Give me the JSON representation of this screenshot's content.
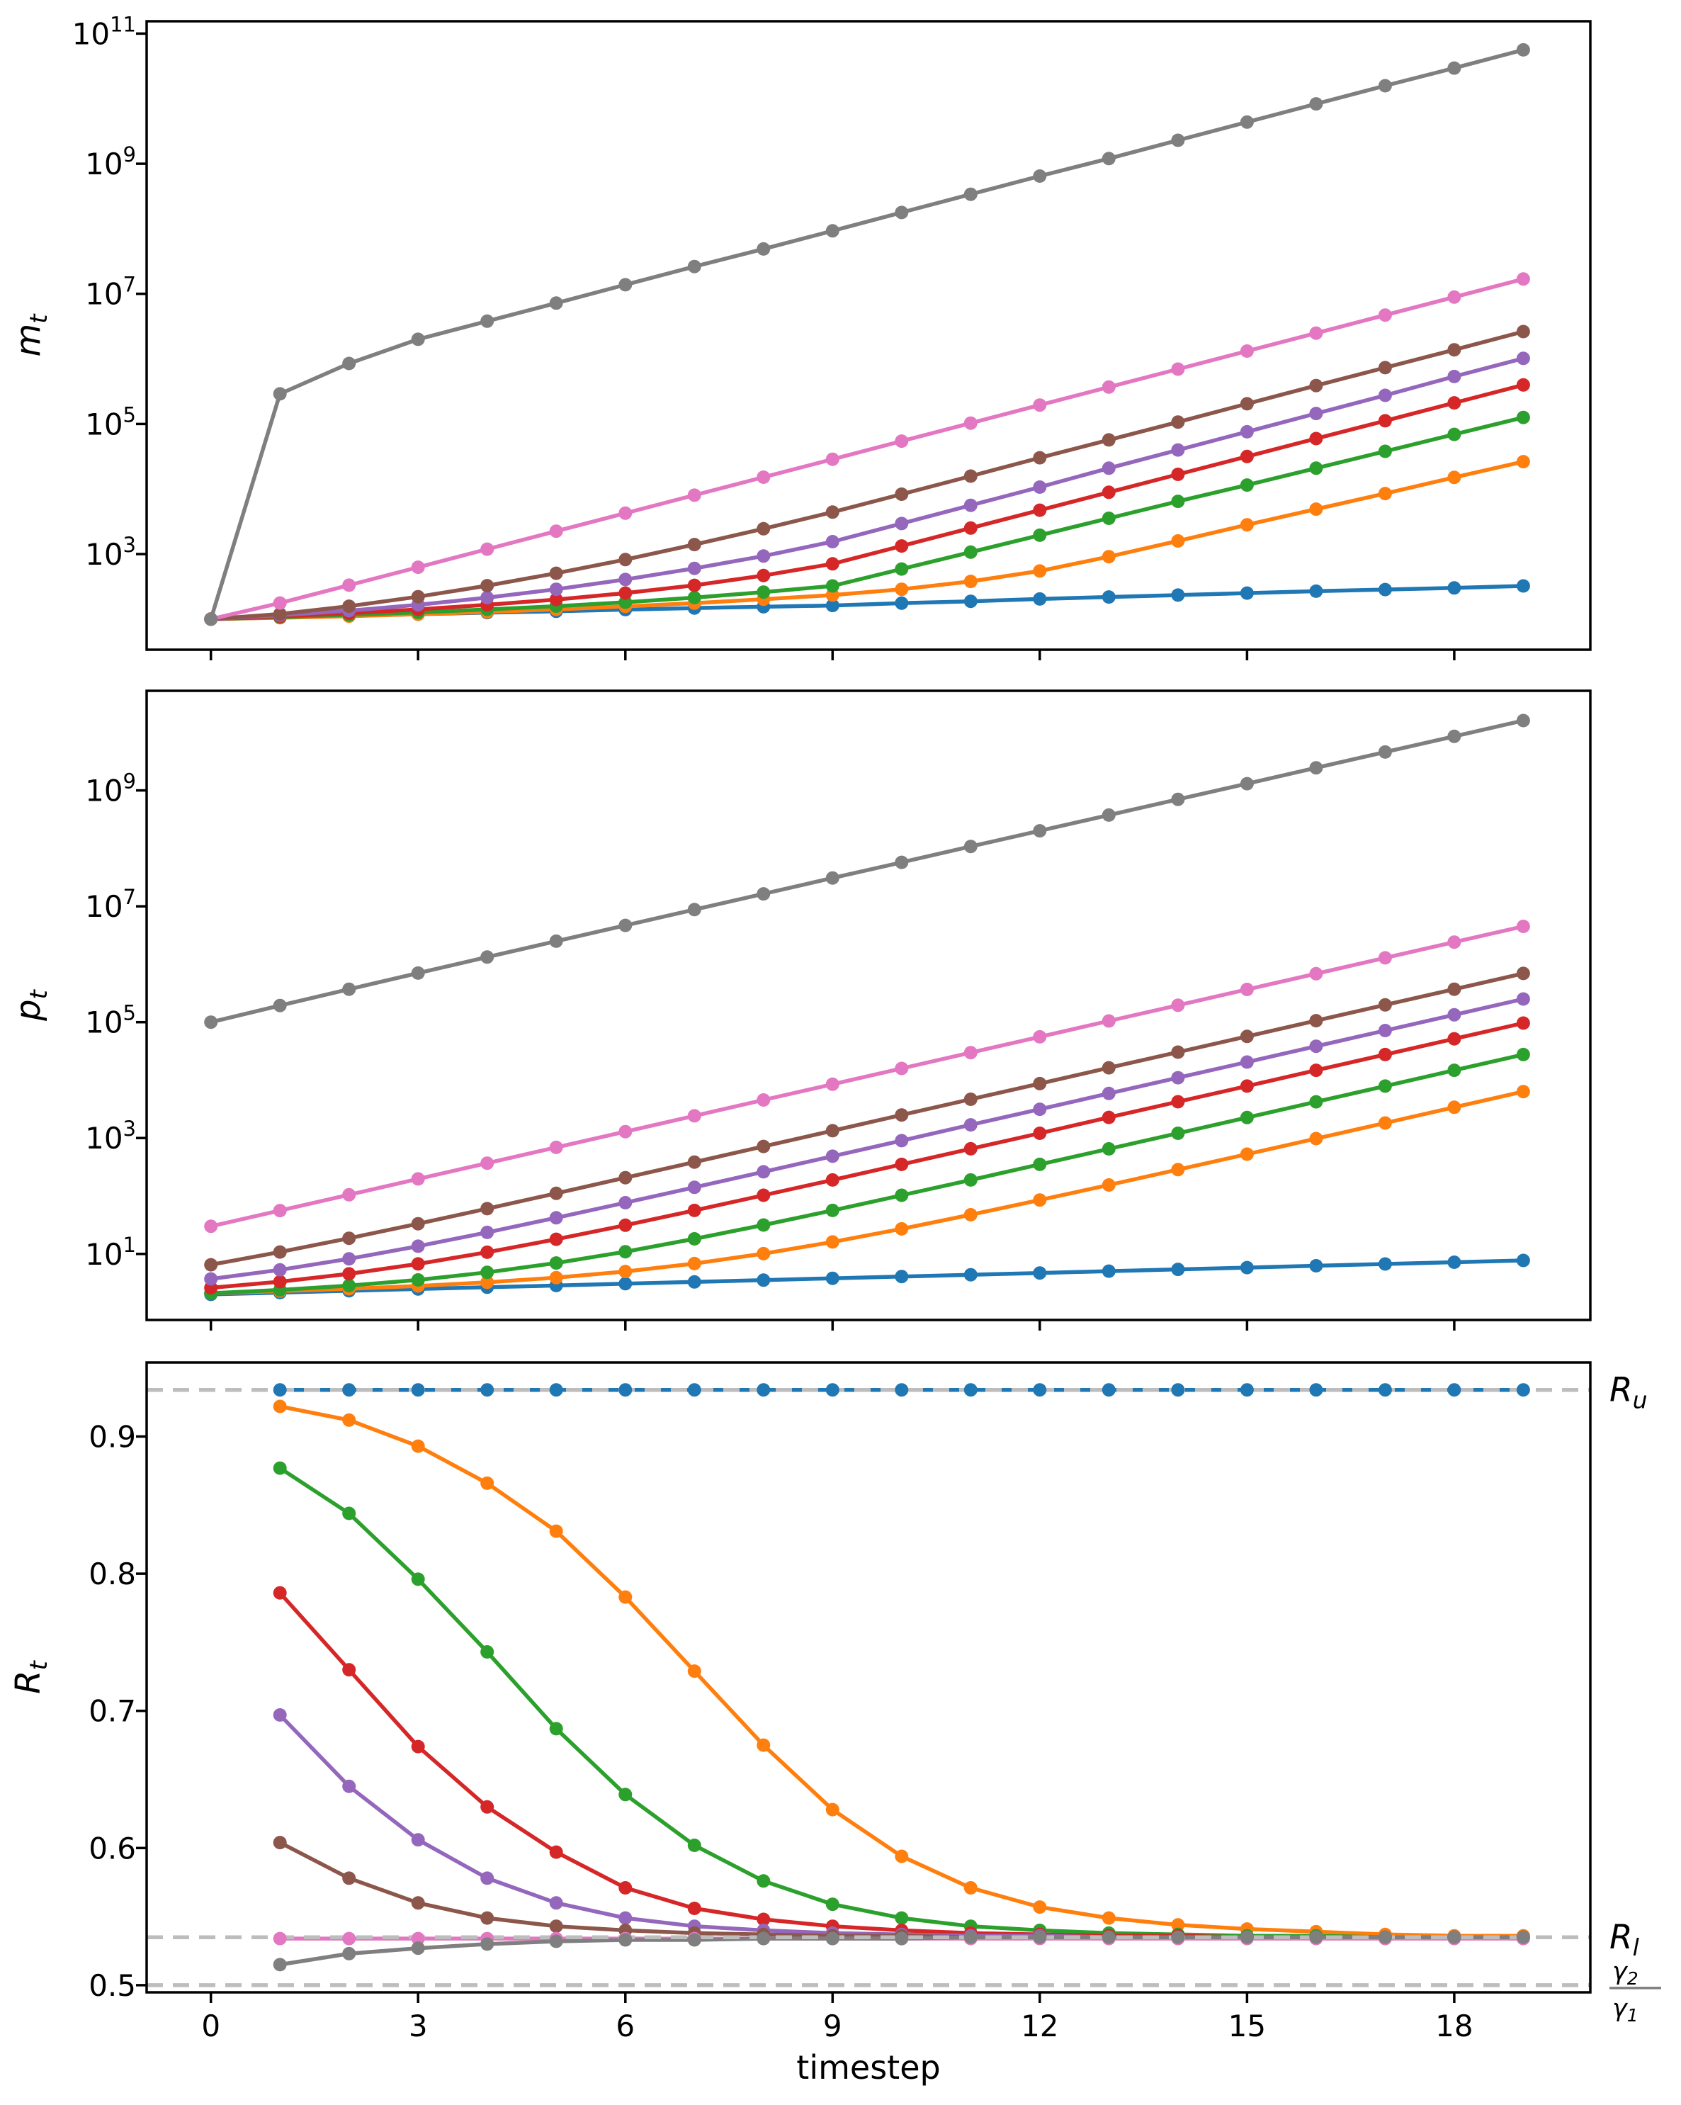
{
  "figure": {
    "background": "#ffffff"
  },
  "colors": {
    "blue": "#1f77b4",
    "orange": "#ff7f0e",
    "green": "#2ca02c",
    "red": "#d62728",
    "purple": "#9467bd",
    "brown": "#8c564b",
    "pink": "#e377c2",
    "gray": "#7f7f7f",
    "dashed_line": "#bdbdbd",
    "annotation_text": "#7f7f7f",
    "axis": "#000000"
  },
  "chart_data": [
    {
      "id": "chart-mt",
      "type": "line",
      "yscale": "log",
      "ylabel_base": "m",
      "ylabel_sub": "t",
      "ylim_log": [
        1.53,
        11.19
      ],
      "yticks_exponents": [
        3,
        5,
        7,
        9,
        11
      ],
      "xticks": [
        0,
        3,
        6,
        9,
        12,
        15,
        18
      ],
      "show_xtick_labels": false,
      "xlabel": "",
      "x": [
        0,
        1,
        2,
        3,
        4,
        5,
        6,
        7,
        8,
        9,
        10,
        11,
        12,
        13,
        14,
        15,
        16,
        17,
        18,
        19
      ],
      "series": [
        {
          "name": "blue",
          "color": "blue",
          "values": [
            100,
            106,
            112,
            119,
            126,
            132,
            140,
            148,
            155,
            162,
            176,
            188,
            204,
            219,
            234,
            251,
            269,
            285,
            302,
            324
          ]
        },
        {
          "name": "orange",
          "color": "orange",
          "values": [
            100,
            105,
            111,
            119,
            129,
            141,
            157,
            176,
            202,
            234,
            288,
            380,
            550,
            912,
            1590,
            2820,
            4900,
            8510,
            15100,
            26300
          ]
        },
        {
          "name": "green",
          "color": "green",
          "values": [
            100,
            107,
            116,
            127,
            141,
            158,
            182,
            214,
            260,
            324,
            589,
            1070,
            1950,
            3550,
            6460,
            11500,
            20900,
            38000,
            69200,
            126000
          ]
        },
        {
          "name": "red",
          "color": "red",
          "values": [
            100,
            110,
            123,
            141,
            166,
            200,
            251,
            331,
            468,
            708,
            1330,
            2510,
            4730,
            8910,
            16800,
            31600,
            59600,
            112000,
            211000,
            398000
          ]
        },
        {
          "name": "purple",
          "color": "purple",
          "values": [
            100,
            115,
            135,
            166,
            214,
            288,
            407,
            603,
            933,
            1550,
            2950,
            5620,
            10700,
            20900,
            39800,
            75900,
            145000,
            275000,
            537000,
            1020000
          ]
        },
        {
          "name": "brown",
          "color": "brown",
          "values": [
            100,
            120,
            158,
            221,
            327,
            507,
            822,
            1400,
            2450,
            4420,
            8320,
            15800,
            30200,
            56900,
            107000,
            204000,
            389000,
            733000,
            1380000,
            2630000
          ]
        },
        {
          "name": "pink",
          "color": "pink",
          "values": [
            100,
            177,
            333,
            628,
            1190,
            2250,
            4250,
            8030,
            15200,
            28700,
            54500,
            103000,
            195000,
            369000,
            697000,
            1320000,
            2490000,
            4720000,
            8920000,
            16900000
          ]
        },
        {
          "name": "gray",
          "color": "gray",
          "values": [
            100,
            290000,
            850000,
            2000000,
            3800000,
            7200000,
            13800000,
            26300000,
            49000000,
            93000000,
            178000000,
            339000000,
            646000000,
            1200000000,
            2290000000,
            4370000000,
            8320000000,
            15800000000,
            29500000000,
            56200000000
          ]
        }
      ]
    },
    {
      "id": "chart-pt",
      "type": "line",
      "yscale": "log",
      "ylabel_base": "p",
      "ylabel_sub": "t",
      "ylim_log": [
        -0.14,
        10.72
      ],
      "yticks_exponents": [
        1,
        3,
        5,
        7,
        9
      ],
      "xticks": [
        0,
        3,
        6,
        9,
        12,
        15,
        18
      ],
      "show_xtick_labels": false,
      "xlabel": "",
      "x": [
        0,
        1,
        2,
        3,
        4,
        5,
        6,
        7,
        8,
        9,
        10,
        11,
        12,
        13,
        14,
        15,
        16,
        17,
        18,
        19
      ],
      "series": [
        {
          "name": "blue",
          "color": "blue",
          "values": [
            2.0,
            2.15,
            2.31,
            2.48,
            2.66,
            2.85,
            3.06,
            3.29,
            3.53,
            3.79,
            4.07,
            4.37,
            4.69,
            5.04,
            5.41,
            5.81,
            6.24,
            6.7,
            7.19,
            7.72
          ]
        },
        {
          "name": "orange",
          "color": "orange",
          "values": [
            2.1,
            2.28,
            2.5,
            2.8,
            3.23,
            3.89,
            4.97,
            6.81,
            10.1,
            16.1,
            27.1,
            47.4,
            85.1,
            155,
            285,
            527,
            978,
            1820,
            3400,
            6340
          ]
        },
        {
          "name": "green",
          "color": "green",
          "values": [
            2.1,
            2.39,
            2.84,
            3.56,
            4.8,
            6.98,
            10.9,
            18.2,
            31.5,
            56.4,
            103,
            189,
            351,
            651,
            1210,
            2260,
            4220,
            7890,
            14800,
            27600
          ]
        },
        {
          "name": "red",
          "color": "red",
          "values": [
            2.6,
            3.31,
            4.53,
            6.72,
            10.7,
            17.9,
            31.3,
            56.3,
            103,
            189,
            351,
            652,
            1210,
            2270,
            4230,
            7900,
            14800,
            27600,
            51600,
            96400
          ]
        },
        {
          "name": "purple",
          "color": "purple",
          "values": [
            3.7,
            5.31,
            8.23,
            13.6,
            23.5,
            42.0,
            76.5,
            141,
            261,
            485,
            903,
            1690,
            3140,
            5880,
            11000,
            20500,
            38400,
            71800,
            134000,
            251000
          ]
        },
        {
          "name": "brown",
          "color": "brown",
          "values": [
            6.5,
            10.8,
            18.6,
            33.2,
            60.5,
            111,
            207,
            384,
            716,
            1340,
            2500,
            4670,
            8710,
            16300,
            30400,
            56800,
            106000,
            199000,
            371000,
            694000
          ]
        },
        {
          "name": "pink",
          "color": "pink",
          "values": [
            30,
            56,
            105,
            197,
            369,
            691,
            1290,
            2420,
            4540,
            8500,
            15900,
            29800,
            55800,
            105000,
            196000,
            367000,
            687000,
            1290000,
            2410000,
            4510000
          ]
        },
        {
          "name": "gray",
          "color": "gray",
          "values": [
            100000,
            194000,
            371000,
            704000,
            1330000,
            2500000,
            4690000,
            8780000,
            16400000,
            30800000,
            57500000,
            108000000,
            201000000,
            376000000,
            703000000,
            1310000000,
            2460000000,
            4600000000,
            8590000000,
            16100000000
          ]
        }
      ]
    },
    {
      "id": "chart-rt",
      "type": "line",
      "yscale": "linear",
      "ylabel_base": "R",
      "ylabel_sub": "t",
      "ylim": [
        0.4948,
        0.954
      ],
      "yticks": [
        0.5,
        0.6,
        0.7,
        0.8,
        0.9
      ],
      "xticks": [
        0,
        3,
        6,
        9,
        12,
        15,
        18
      ],
      "show_xtick_labels": true,
      "xlabel": "timestep",
      "x": [
        1,
        2,
        3,
        4,
        5,
        6,
        7,
        8,
        9,
        10,
        11,
        12,
        13,
        14,
        15,
        16,
        17,
        18,
        19
      ],
      "series": [
        {
          "name": "blue",
          "color": "blue",
          "values": [
            0.934,
            0.934,
            0.934,
            0.934,
            0.934,
            0.934,
            0.934,
            0.934,
            0.934,
            0.934,
            0.934,
            0.934,
            0.934,
            0.934,
            0.934,
            0.934,
            0.934,
            0.934,
            0.934
          ]
        },
        {
          "name": "orange",
          "color": "orange",
          "values": [
            0.922,
            0.912,
            0.893,
            0.866,
            0.831,
            0.783,
            0.729,
            0.675,
            0.628,
            0.594,
            0.571,
            0.557,
            0.549,
            0.544,
            0.541,
            0.539,
            0.537,
            0.536,
            0.536
          ]
        },
        {
          "name": "green",
          "color": "green",
          "values": [
            0.877,
            0.844,
            0.796,
            0.743,
            0.687,
            0.639,
            0.602,
            0.576,
            0.559,
            0.549,
            0.543,
            0.54,
            0.538,
            0.537,
            0.536,
            0.536,
            0.535,
            0.535,
            0.535
          ]
        },
        {
          "name": "red",
          "color": "red",
          "values": [
            0.786,
            0.73,
            0.674,
            0.63,
            0.597,
            0.571,
            0.556,
            0.548,
            0.543,
            0.54,
            0.538,
            0.537,
            0.536,
            0.536,
            0.535,
            0.535,
            0.535,
            0.535,
            0.535
          ]
        },
        {
          "name": "purple",
          "color": "purple",
          "values": [
            0.697,
            0.645,
            0.606,
            0.578,
            0.56,
            0.549,
            0.543,
            0.54,
            0.538,
            0.537,
            0.536,
            0.536,
            0.535,
            0.535,
            0.535,
            0.535,
            0.535,
            0.535,
            0.535
          ]
        },
        {
          "name": "brown",
          "color": "brown",
          "values": [
            0.604,
            0.578,
            0.56,
            0.549,
            0.543,
            0.54,
            0.538,
            0.537,
            0.536,
            0.536,
            0.535,
            0.535,
            0.535,
            0.535,
            0.535,
            0.535,
            0.535,
            0.535,
            0.535
          ]
        },
        {
          "name": "pink",
          "color": "pink",
          "values": [
            0.534,
            0.534,
            0.534,
            0.534,
            0.534,
            0.534,
            0.534,
            0.534,
            0.534,
            0.534,
            0.534,
            0.534,
            0.534,
            0.534,
            0.534,
            0.534,
            0.534,
            0.534,
            0.534
          ]
        },
        {
          "name": "gray",
          "color": "gray",
          "values": [
            0.515,
            0.523,
            0.527,
            0.53,
            0.532,
            0.533,
            0.533,
            0.534,
            0.534,
            0.534,
            0.535,
            0.535,
            0.535,
            0.535,
            0.535,
            0.535,
            0.535,
            0.535,
            0.535
          ]
        }
      ],
      "hlines": [
        {
          "id": "Ru",
          "value": 0.934
        },
        {
          "id": "Rl",
          "value": 0.535
        },
        {
          "id": "gamma-ratio",
          "value": 0.5
        }
      ],
      "annotations": [
        {
          "id": "Ru",
          "kind": "sub",
          "base": "R",
          "sub": "u",
          "value": 0.934
        },
        {
          "id": "Rl",
          "kind": "sub",
          "base": "R",
          "sub": "l",
          "value": 0.535
        },
        {
          "id": "gamma-ratio",
          "kind": "fraction",
          "num_base": "γ",
          "num_sub": "2",
          "den_base": "γ",
          "den_sub": "1",
          "value": 0.5
        }
      ]
    }
  ]
}
